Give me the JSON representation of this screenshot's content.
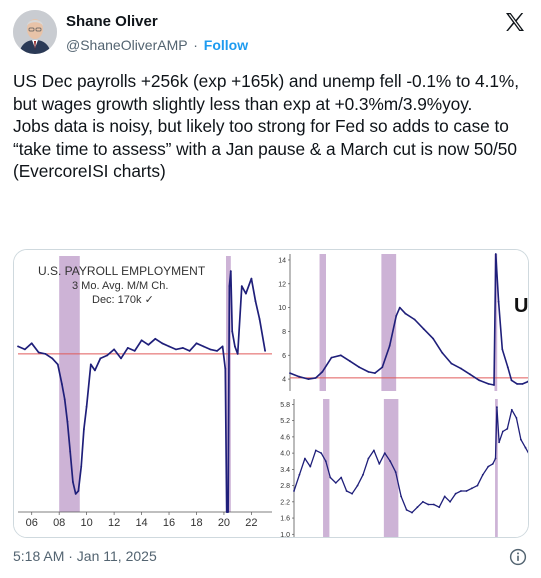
{
  "author": {
    "name": "Shane Oliver",
    "handle": "@ShaneOliverAMP",
    "separator": "·",
    "follow_label": "Follow"
  },
  "tweet": {
    "text": "US Dec payrolls +256k (exp +165k) and unemp fell -0.1% to 4.1%, but wages growth slightly less than exp at +0.3%m/3.9%yoy.\nJobs data is noisy, but likely too strong for Fed so adds to case to “take time to assess” with a Jan pause & a March cut is now 50/50\n(EvercoreISI charts)",
    "timestamp": "5:18 AM · Jan 11, 2025"
  },
  "icons": {
    "platform": "x-logo-icon",
    "info": "info-icon"
  },
  "colors": {
    "series": "#1f1f7a",
    "recession_shade": "#cdb3d6",
    "reference_line": "#e05a5a",
    "link": "#1d9bf0",
    "muted_text": "#536471"
  },
  "chart_data": [
    {
      "type": "line",
      "title": "U.S. PAYROLL EMPLOYMENT",
      "subtitle": "3 Mo. Avg.   M/M Ch.",
      "annotation": "Dec: 170k ✓",
      "x_tick_labels": [
        "06",
        "08",
        "10",
        "12",
        "14",
        "16",
        "18",
        "20",
        "22"
      ],
      "x_ticks": [
        2006,
        2008,
        2010,
        2012,
        2014,
        2016,
        2018,
        2020,
        2022
      ],
      "xlim": [
        2005,
        2023.5
      ],
      "ylim": [
        -900,
        800
      ],
      "reference_line_y": 150,
      "recession_bands": [
        [
          2008.0,
          2009.5
        ],
        [
          2020.15,
          2020.5
        ]
      ],
      "x": [
        2005.0,
        2005.5,
        2006.0,
        2006.5,
        2007.0,
        2007.5,
        2007.9,
        2008.2,
        2008.4,
        2008.6,
        2008.8,
        2009.0,
        2009.2,
        2009.4,
        2009.6,
        2009.8,
        2010.0,
        2010.3,
        2010.6,
        2011.0,
        2011.5,
        2012.0,
        2012.5,
        2013.0,
        2013.5,
        2014.0,
        2014.5,
        2015.0,
        2015.5,
        2016.0,
        2016.5,
        2017.0,
        2017.5,
        2018.0,
        2018.5,
        2019.0,
        2019.5,
        2019.9,
        2020.1,
        2020.2,
        2020.25,
        2020.3,
        2020.4,
        2020.5,
        2020.6,
        2020.8,
        2021.0,
        2021.3,
        2021.6,
        2022.0,
        2022.3,
        2022.6,
        2023.0
      ],
      "y": [
        200,
        180,
        220,
        160,
        150,
        120,
        80,
        -50,
        -150,
        -300,
        -500,
        -700,
        -780,
        -760,
        -600,
        -350,
        -200,
        80,
        40,
        120,
        140,
        180,
        120,
        190,
        170,
        240,
        210,
        250,
        220,
        200,
        180,
        190,
        170,
        220,
        200,
        180,
        170,
        200,
        50,
        -900,
        -900,
        -900,
        600,
        700,
        300,
        200,
        150,
        600,
        550,
        650,
        500,
        380,
        170
      ],
      "ylabel": ""
    },
    {
      "type": "line",
      "title": "UN",
      "y_tick_labels": [
        "4",
        "6",
        "8",
        "10",
        "12",
        "14"
      ],
      "y_ticks": [
        4,
        6,
        8,
        10,
        12,
        14
      ],
      "ylim": [
        3,
        14.5
      ],
      "xlim": [
        1998,
        2024
      ],
      "reference_line_y": 4.1,
      "recession_bands": [
        [
          2001.2,
          2001.9
        ],
        [
          2007.9,
          2009.5
        ],
        [
          2020.15,
          2020.45
        ]
      ],
      "x": [
        1998,
        1999,
        2000,
        2000.8,
        2001.5,
        2002.5,
        2003.5,
        2004.5,
        2005.5,
        2006.5,
        2007.2,
        2008.0,
        2008.8,
        2009.5,
        2009.9,
        2010.5,
        2011.5,
        2012.5,
        2013.5,
        2014.5,
        2015.5,
        2016.5,
        2017.5,
        2018.5,
        2019.5,
        2020.1,
        2020.3,
        2020.6,
        2021.0,
        2021.6,
        2022.0,
        2022.6,
        2023.2,
        2023.8,
        2024.0
      ],
      "y": [
        4.5,
        4.2,
        4.0,
        4.1,
        4.6,
        5.8,
        6.0,
        5.5,
        5.0,
        4.6,
        4.5,
        5.0,
        6.8,
        9.3,
        10.0,
        9.5,
        9.0,
        8.2,
        7.4,
        6.2,
        5.3,
        4.9,
        4.4,
        3.9,
        3.6,
        3.5,
        14.7,
        10.5,
        6.5,
        5.0,
        3.9,
        3.6,
        3.6,
        3.8,
        4.1
      ],
      "ylabel": ""
    },
    {
      "type": "line",
      "y_tick_labels": [
        "1.0",
        "1.6",
        "2.2",
        "2.8",
        "3.4",
        "4.0",
        "4.6",
        "5.2",
        "5.8"
      ],
      "y_ticks": [
        1.0,
        1.6,
        2.2,
        2.8,
        3.4,
        4.0,
        4.6,
        5.2,
        5.8
      ],
      "ylim": [
        0.9,
        6.0
      ],
      "xlim": [
        1998,
        2024
      ],
      "recession_bands": [
        [
          2001.2,
          2001.9
        ],
        [
          2007.9,
          2009.5
        ],
        [
          2020.15,
          2020.45
        ]
      ],
      "x": [
        1998,
        1998.6,
        1999.2,
        1999.8,
        2000.4,
        2001.0,
        2001.5,
        2002.0,
        2002.6,
        2003.2,
        2003.8,
        2004.4,
        2005.0,
        2005.6,
        2006.2,
        2006.8,
        2007.4,
        2008.0,
        2008.6,
        2009.2,
        2009.8,
        2010.4,
        2011.0,
        2011.6,
        2012.2,
        2012.8,
        2013.4,
        2014.0,
        2014.6,
        2015.2,
        2015.8,
        2016.4,
        2017.0,
        2017.6,
        2018.2,
        2018.8,
        2019.4,
        2019.9,
        2020.2,
        2020.35,
        2020.6,
        2021.0,
        2021.5,
        2022.0,
        2022.5,
        2023.0,
        2023.5,
        2024.0
      ],
      "y": [
        2.6,
        3.2,
        3.8,
        3.5,
        4.1,
        4.0,
        3.7,
        3.1,
        2.9,
        3.1,
        2.6,
        2.5,
        2.8,
        3.2,
        3.8,
        4.1,
        3.6,
        4.0,
        3.7,
        3.3,
        2.4,
        1.9,
        1.8,
        2.0,
        2.2,
        2.1,
        2.1,
        2.0,
        2.4,
        2.2,
        2.5,
        2.6,
        2.6,
        2.7,
        2.8,
        3.2,
        3.5,
        3.6,
        3.8,
        5.7,
        4.4,
        4.8,
        4.9,
        5.6,
        5.3,
        4.5,
        4.2,
        3.9
      ],
      "ylabel": ""
    }
  ]
}
